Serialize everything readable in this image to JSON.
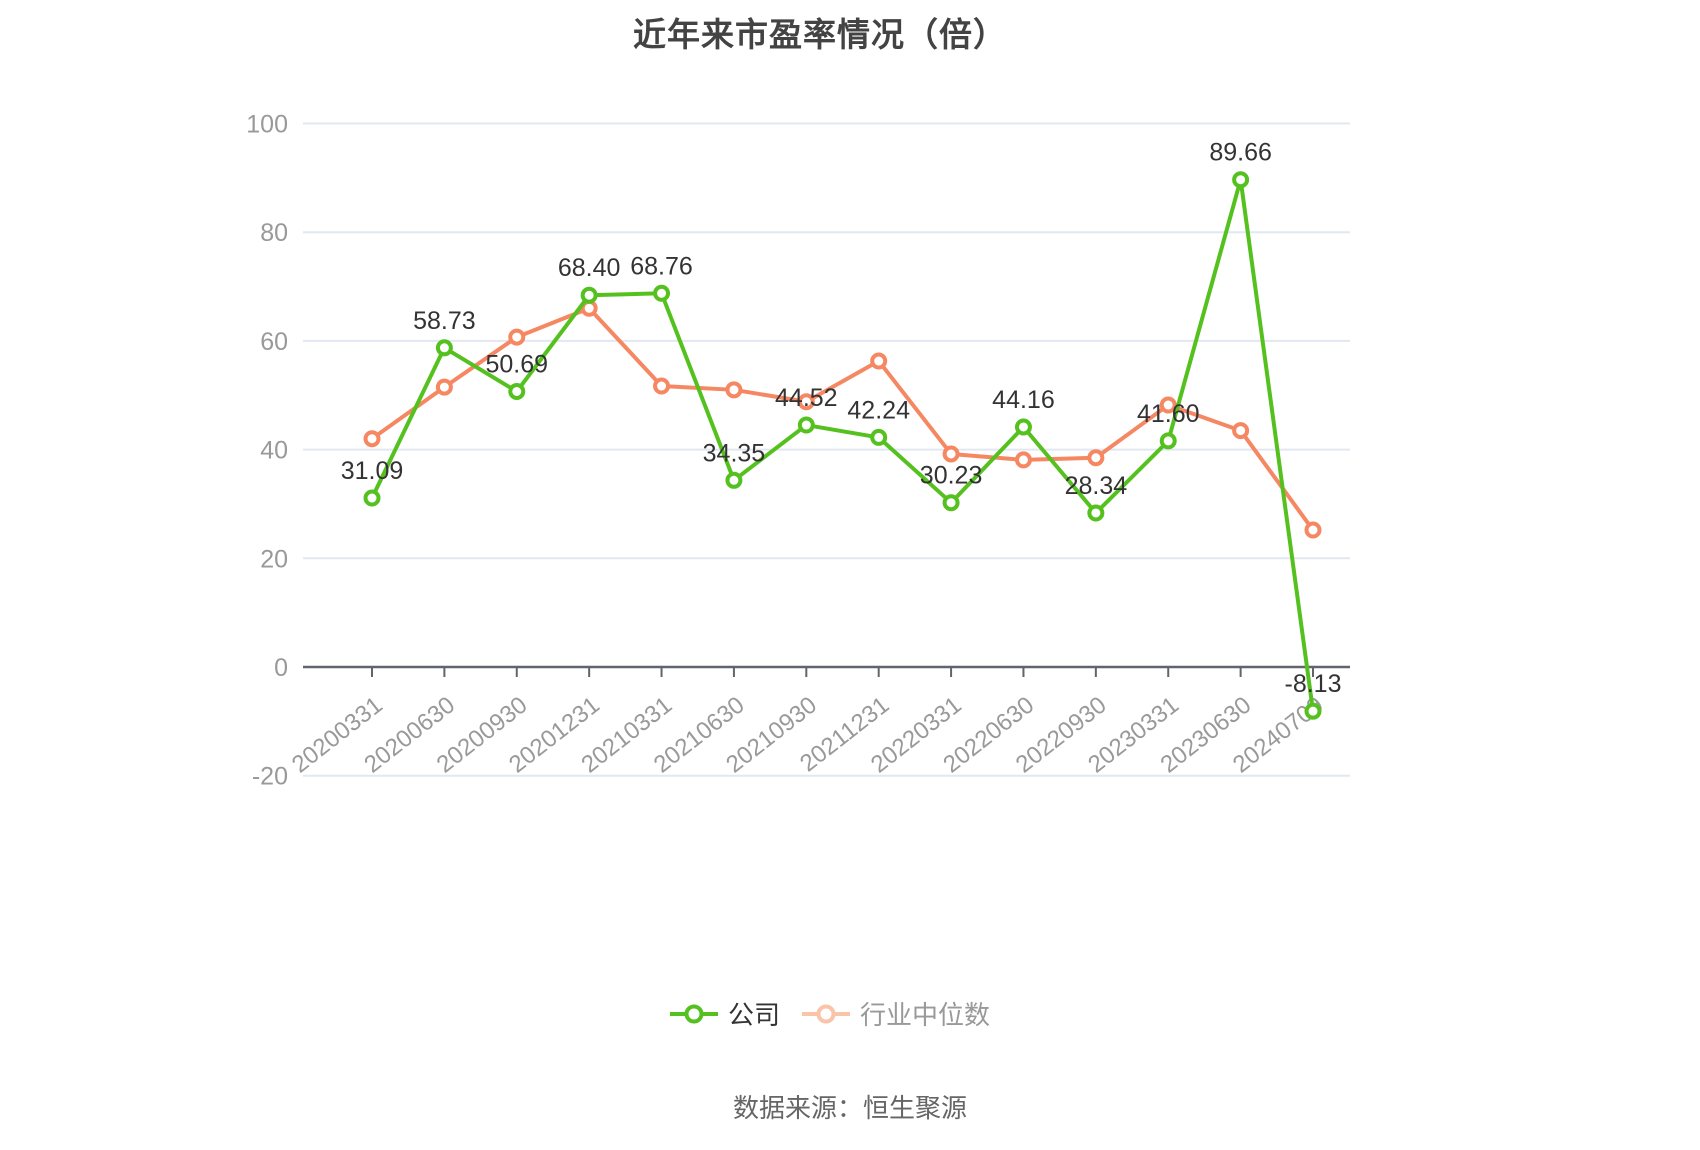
{
  "title": "近年来市盈率情况（倍）",
  "source_note": "数据来源：恒生聚源",
  "legend": [
    {
      "label": "公司",
      "muted": false
    },
    {
      "label": "行业中位数",
      "muted": true
    }
  ],
  "colors": {
    "company_green": "#55c11f",
    "median_orange": "#f58862",
    "median_legend_muted": "#f9c4a7",
    "grid_line": "#e2e7f1",
    "axis_line": "#61646e",
    "axis_label": "#999999",
    "value_label": "#333333",
    "title_text": "#434343",
    "source_text": "#666666",
    "legend_active_text": "#333333",
    "legend_muted_text": "#999999"
  },
  "chart_data": {
    "type": "line",
    "title": "近年来市盈率情况（倍）",
    "xlabel": "",
    "ylabel": "",
    "ylim": [
      -20,
      100
    ],
    "yticks": [
      -20,
      0,
      20,
      40,
      60,
      80,
      100
    ],
    "grid": true,
    "legend_position": "bottom",
    "categories": [
      "20200331",
      "20200630",
      "20200930",
      "20201231",
      "20210331",
      "20210630",
      "20210930",
      "20211231",
      "20220331",
      "20220630",
      "20220930",
      "20230331",
      "20230630",
      "20240709"
    ],
    "series": [
      {
        "name": "公司",
        "color": "#55c11f",
        "values": [
          31.09,
          58.73,
          50.69,
          68.4,
          68.76,
          34.35,
          44.52,
          42.24,
          30.23,
          44.16,
          28.34,
          41.6,
          89.66,
          -8.13
        ],
        "point_labels": [
          "31.09",
          "58.73",
          "50.69",
          "68.40",
          "68.76",
          "34.35",
          "44.52",
          "42.24",
          "30.23",
          "44.16",
          "28.34",
          "41.60",
          "89.66",
          "-8.13"
        ],
        "labels_shown": true
      },
      {
        "name": "行业中位数",
        "color": "#f58862",
        "values": [
          42.0,
          51.5,
          60.7,
          66.0,
          51.7,
          51.0,
          48.8,
          56.3,
          39.2,
          38.1,
          38.5,
          48.2,
          43.5,
          25.2
        ],
        "labels_shown": false
      }
    ]
  }
}
